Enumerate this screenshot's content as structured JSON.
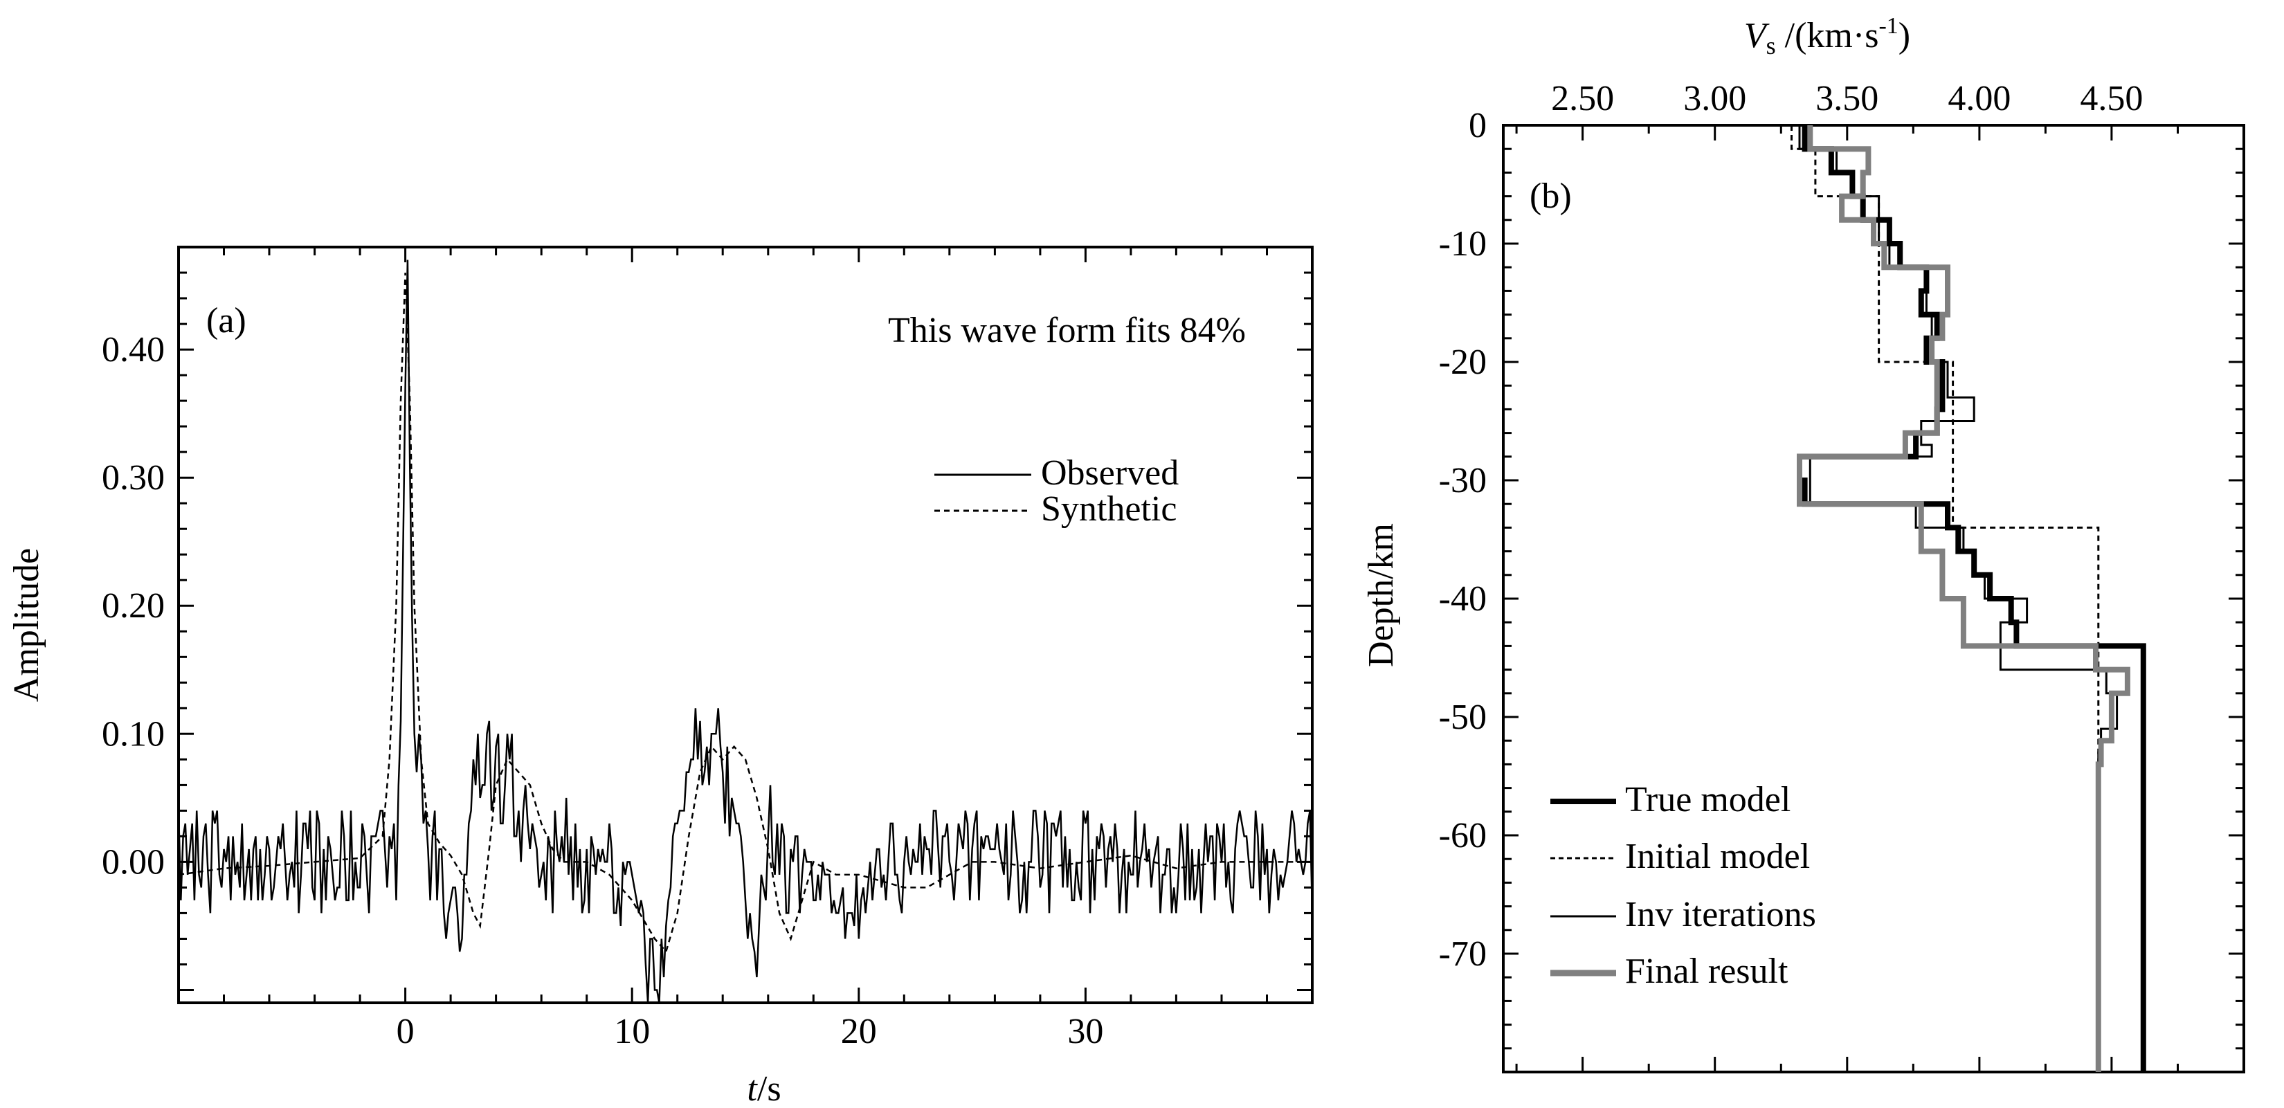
{
  "chart_data": [
    {
      "panel": "(a)",
      "type": "line",
      "xlabel_var": "t",
      "xlabel_unit": "/s",
      "ylabel": "Amplitude",
      "xlim": [
        -10,
        40
      ],
      "ylim": [
        -0.11,
        0.48
      ],
      "xticks": [
        0,
        10,
        20,
        30
      ],
      "xtick_labels": [
        "0",
        "10",
        "20",
        "30"
      ],
      "yticks": [
        0.0,
        0.1,
        0.2,
        0.3,
        0.4
      ],
      "ytick_labels": [
        "0.00",
        "0.10",
        "0.20",
        "0.30",
        "0.40"
      ],
      "annotation": "This wave form fits 84%",
      "legend": [
        "Observed",
        "Synthetic"
      ],
      "legend_position": "right",
      "series": [
        {
          "name": "Synthetic",
          "style": "dashed",
          "x": [
            -10,
            -8,
            -6,
            -4,
            -2,
            -1,
            -0.7,
            -0.4,
            -0.2,
            0,
            0.2,
            0.4,
            0.7,
            1,
            1.5,
            2,
            2.5,
            3,
            3.3,
            3.7,
            4,
            4.5,
            5,
            5.5,
            6,
            6.5,
            7,
            8,
            9,
            10,
            11,
            11.5,
            12,
            12.5,
            13,
            13.5,
            14,
            14.5,
            15,
            15.5,
            16,
            16.5,
            17,
            17.5,
            18,
            19,
            20,
            22,
            23,
            24,
            25,
            26,
            28,
            30,
            32,
            34,
            36,
            38,
            40
          ],
          "values": [
            -0.01,
            -0.005,
            -0.003,
            0.0,
            0.003,
            0.02,
            0.08,
            0.2,
            0.36,
            0.46,
            0.36,
            0.2,
            0.08,
            0.03,
            0.015,
            0.005,
            -0.01,
            -0.04,
            -0.05,
            0.01,
            0.06,
            0.08,
            0.07,
            0.06,
            0.03,
            0.01,
            0.0,
            0.0,
            -0.01,
            -0.03,
            -0.06,
            -0.07,
            -0.04,
            0.02,
            0.07,
            0.09,
            0.08,
            0.09,
            0.08,
            0.05,
            0.01,
            -0.04,
            -0.06,
            -0.03,
            0.0,
            -0.01,
            -0.01,
            -0.02,
            -0.02,
            -0.01,
            0.0,
            0.0,
            -0.005,
            0.0,
            0.005,
            -0.005,
            0.0,
            0.0,
            0.0
          ]
        },
        {
          "name": "Observed",
          "style": "solid",
          "dx": 0.1,
          "x_start": -10,
          "values": [
            0.04,
            -0.03,
            0.02,
            0.03,
            -0.01,
            0.01,
            0.03,
            -0.03,
            0.04,
            -0.01,
            -0.02,
            0.02,
            0.03,
            -0.01,
            -0.04,
            0.04,
            0.03,
            0.04,
            -0.01,
            -0.02,
            0.01,
            0.0,
            0.02,
            -0.03,
            0.02,
            -0.01,
            0.0,
            -0.02,
            0.03,
            -0.03,
            -0.01,
            0.01,
            -0.03,
            0.01,
            0.02,
            -0.03,
            0.01,
            -0.03,
            -0.01,
            0.02,
            0.01,
            -0.03,
            -0.02,
            0.0,
            0.02,
            0.01,
            0.03,
            0.0,
            -0.03,
            -0.01,
            0.0,
            -0.02,
            0.04,
            -0.04,
            -0.01,
            0.03,
            0.03,
            0.01,
            0.04,
            -0.02,
            -0.03,
            0.04,
            0.03,
            -0.04,
            0.01,
            -0.03,
            0.02,
            0.01,
            -0.01,
            -0.03,
            -0.02,
            -0.02,
            0.04,
            0.02,
            -0.03,
            -0.03,
            0.04,
            -0.03,
            0.0,
            -0.02,
            -0.02,
            0.03,
            0.02,
            -0.01,
            -0.04,
            0.02,
            0.02,
            0.02,
            0.03,
            0.04,
            0.04,
            0.01,
            -0.02,
            0.02,
            0.01,
            0.03,
            -0.03,
            0.06,
            0.11,
            0.24,
            0.37,
            0.47,
            0.31,
            0.19,
            0.1,
            0.07,
            0.1,
            0.08,
            0.03,
            0.04,
            0.01,
            -0.03,
            0.02,
            0.04,
            -0.03,
            0.01,
            0.01,
            -0.04,
            -0.06,
            -0.04,
            -0.03,
            -0.02,
            -0.02,
            -0.04,
            -0.07,
            -0.06,
            -0.01,
            -0.01,
            0.03,
            0.04,
            0.08,
            0.06,
            0.1,
            0.05,
            0.06,
            0.06,
            0.1,
            0.11,
            0.04,
            0.05,
            0.09,
            0.1,
            0.03,
            0.03,
            0.06,
            0.1,
            0.08,
            0.1,
            0.02,
            0.02,
            0.04,
            0.0,
            0.04,
            0.06,
            0.03,
            0.01,
            0.03,
            0.02,
            0.01,
            -0.02,
            -0.01,
            0.0,
            -0.03,
            0.02,
            0.01,
            -0.04,
            0.04,
            0.01,
            0.0,
            0.02,
            0.0,
            0.05,
            -0.01,
            0.02,
            -0.03,
            0.03,
            -0.02,
            0.01,
            -0.04,
            -0.03,
            0.01,
            -0.04,
            0.02,
            0.01,
            -0.01,
            0.01,
            0.0,
            0.01,
            0.0,
            0.0,
            0.03,
            0.01,
            -0.04,
            -0.04,
            -0.02,
            -0.05,
            0.0,
            -0.01,
            0.0,
            0.0,
            -0.01,
            -0.02,
            -0.03,
            -0.04,
            -0.03,
            -0.04,
            -0.08,
            -0.11,
            -0.06,
            -0.06,
            -0.1,
            -0.1,
            -0.11,
            -0.06,
            -0.09,
            -0.05,
            -0.03,
            -0.02,
            0.02,
            0.03,
            0.03,
            0.04,
            0.04,
            0.04,
            0.07,
            0.07,
            0.08,
            0.08,
            0.12,
            0.08,
            0.11,
            0.06,
            0.07,
            0.09,
            0.06,
            0.1,
            0.1,
            0.1,
            0.12,
            0.09,
            0.07,
            0.03,
            0.09,
            0.02,
            0.05,
            0.04,
            0.03,
            0.03,
            0.02,
            0.0,
            -0.03,
            -0.06,
            -0.04,
            -0.06,
            -0.07,
            -0.09,
            -0.05,
            -0.01,
            -0.02,
            -0.03,
            0.02,
            0.06,
            0.0,
            -0.01,
            0.03,
            -0.01,
            0.03,
            0.02,
            -0.04,
            -0.04,
            0.01,
            0.0,
            0.02,
            0.02,
            -0.04,
            -0.01,
            0.01,
            0.0,
            0.0,
            0.0,
            -0.03,
            -0.03,
            -0.01,
            -0.03,
            0.0,
            -0.01,
            -0.01,
            -0.01,
            -0.04,
            -0.03,
            -0.04,
            -0.04,
            -0.03,
            -0.02,
            -0.06,
            -0.04,
            -0.04,
            -0.04,
            -0.05,
            -0.01,
            -0.06,
            -0.03,
            -0.02,
            -0.04,
            -0.02,
            0.0,
            -0.03,
            -0.01,
            0.01,
            0.01,
            -0.02,
            -0.01,
            -0.03,
            0.0,
            0.03,
            0.03,
            -0.01,
            -0.01,
            -0.03,
            -0.04,
            0.0,
            0.02,
            0.0,
            -0.01,
            0.01,
            0.0,
            0.0,
            0.03,
            -0.01,
            0.02,
            0.01,
            0.01,
            -0.01,
            0.04,
            0.04,
            0.01,
            -0.02,
            0.02,
            0.02,
            0.03,
            0.0,
            -0.01,
            -0.03,
            0.0,
            0.03,
            0.02,
            0.01,
            0.04,
            0.03,
            -0.03,
            0.01,
            0.03,
            0.04,
            -0.03,
            0.02,
            0.01,
            0.02,
            0.02,
            0.01,
            0.01,
            0.01,
            0.03,
            0.01,
            0.0,
            -0.01,
            0.03,
            -0.03,
            -0.01,
            0.04,
            0.02,
            0.0,
            -0.04,
            -0.03,
            0.0,
            -0.04,
            0.0,
            0.0,
            0.04,
            0.04,
            0.02,
            -0.02,
            -0.01,
            0.04,
            0.03,
            -0.04,
            0.03,
            0.03,
            0.02,
            0.03,
            0.04,
            -0.02,
            0.02,
            -0.02,
            0.01,
            -0.03,
            -0.03,
            0.0,
            -0.02,
            -0.03,
            0.04,
            0.03,
            0.04,
            -0.04,
            0.01,
            -0.03,
            0.02,
            0.01,
            0.03,
            0.02,
            -0.02,
            0.01,
            0.02,
            0.0,
            0.03,
            0.01,
            -0.04,
            -0.01,
            0.01,
            -0.04,
            0.0,
            -0.01,
            -0.01,
            0.04,
            -0.02,
            0.0,
            0.01,
            0.03,
            0.0,
            0.01,
            -0.02,
            0.0,
            0.01,
            0.02,
            -0.04,
            -0.01,
            -0.01,
            0.01,
            0.01,
            -0.04,
            -0.02,
            -0.04,
            -0.01,
            0.03,
            0.01,
            -0.03,
            0.03,
            -0.03,
            0.01,
            -0.03,
            -0.02,
            0.01,
            -0.04,
            0.0,
            0.03,
            0.0,
            0.02,
            0.02,
            -0.03,
            0.03,
            0.02,
            0.0,
            0.03,
            -0.02,
            0.0,
            -0.03,
            -0.04,
            0.01,
            0.03,
            0.04,
            0.03,
            0.02,
            0.02,
            0.0,
            -0.02,
            -0.02,
            0.04,
            0.02,
            -0.03,
            0.03,
            -0.01,
            0.01,
            -0.04,
            -0.01,
            0.01,
            0.0,
            -0.03,
            -0.01,
            -0.02,
            -0.01,
            0.0,
            0.02,
            0.04,
            0.03,
            0.0,
            0.01,
            0.0,
            -0.01,
            0.0,
            0.03,
            0.04,
            -0.04
          ]
        }
      ]
    },
    {
      "panel": "(b)",
      "type": "line",
      "xlabel_var": "V",
      "xlabel_sub": "s",
      "xlabel_unit": " /(km·s",
      "xlabel_exp": "-1",
      "xlabel_close": ")",
      "ylabel": "Depth/km",
      "xlim": [
        2.2,
        5.0
      ],
      "ylim": [
        -80,
        0
      ],
      "xticks": [
        2.5,
        3.0,
        3.5,
        4.0,
        4.5
      ],
      "xtick_labels": [
        "2.50",
        "3.00",
        "3.50",
        "4.00",
        "4.50"
      ],
      "yticks": [
        0,
        -10,
        -20,
        -30,
        -40,
        -50,
        -60,
        -70
      ],
      "ytick_labels": [
        "0",
        "-10",
        "-20",
        "-30",
        "-40",
        "-50",
        "-60",
        "-70"
      ],
      "legend": [
        "True model",
        "Initial model",
        "Inv iterations",
        "Final result"
      ],
      "legend_position": "bottom-left",
      "series": [
        {
          "name": "Initial model",
          "style": "dashed",
          "depth": [
            0,
            2,
            2,
            6,
            6,
            20,
            20,
            34,
            34,
            80
          ],
          "vs": [
            3.29,
            3.29,
            3.38,
            3.38,
            3.62,
            3.62,
            3.9,
            3.9,
            4.45,
            4.45
          ]
        },
        {
          "name": "Inv iterations",
          "style": "thin",
          "depth": [
            0,
            2,
            2,
            4,
            4,
            6,
            6,
            10,
            10,
            12,
            12,
            16,
            16,
            20,
            20,
            23,
            23,
            25,
            25,
            27,
            27,
            28,
            28,
            32,
            32,
            34,
            34,
            36,
            36,
            38,
            38,
            40,
            40,
            42,
            42,
            46,
            46,
            48,
            48,
            51,
            51,
            53,
            53,
            80
          ],
          "vs": [
            3.32,
            3.32,
            3.46,
            3.46,
            3.52,
            3.52,
            3.62,
            3.62,
            3.66,
            3.66,
            3.8,
            3.8,
            3.82,
            3.82,
            3.88,
            3.88,
            3.98,
            3.98,
            3.78,
            3.78,
            3.82,
            3.82,
            3.36,
            3.36,
            3.76,
            3.76,
            3.94,
            3.94,
            3.98,
            3.98,
            4.02,
            4.02,
            4.18,
            4.18,
            4.08,
            4.08,
            4.48,
            4.48,
            4.52,
            4.52,
            4.46,
            4.46,
            4.45,
            4.45
          ]
        },
        {
          "name": "True model",
          "style": "thick-black",
          "depth": [
            0,
            2,
            2,
            4,
            4,
            6,
            6,
            8,
            8,
            10,
            10,
            12,
            12,
            14,
            14,
            16,
            16,
            18,
            18,
            20,
            20,
            22,
            22,
            24,
            24,
            26,
            26,
            28,
            28,
            30,
            30,
            32,
            32,
            34,
            34,
            36,
            36,
            38,
            38,
            40,
            40,
            42,
            42,
            44,
            44,
            80
          ],
          "vs": [
            3.34,
            3.34,
            3.44,
            3.44,
            3.52,
            3.52,
            3.56,
            3.56,
            3.66,
            3.66,
            3.7,
            3.7,
            3.8,
            3.8,
            3.78,
            3.78,
            3.84,
            3.84,
            3.8,
            3.8,
            3.86,
            3.86,
            3.86,
            3.86,
            3.84,
            3.84,
            3.76,
            3.76,
            3.32,
            3.32,
            3.34,
            3.34,
            3.88,
            3.88,
            3.92,
            3.92,
            3.98,
            3.98,
            4.04,
            4.04,
            4.12,
            4.12,
            4.14,
            4.14,
            4.62,
            4.62
          ]
        },
        {
          "name": "Final result",
          "style": "thick-gray",
          "depth": [
            0,
            2,
            2,
            4,
            4,
            6,
            6,
            8,
            8,
            10,
            10,
            12,
            12,
            16,
            16,
            18,
            18,
            20,
            20,
            24,
            24,
            26,
            26,
            28,
            28,
            32,
            32,
            36,
            36,
            40,
            40,
            44,
            44,
            46,
            46,
            48,
            48,
            52,
            52,
            54,
            54,
            80
          ],
          "vs": [
            3.36,
            3.36,
            3.58,
            3.58,
            3.56,
            3.56,
            3.48,
            3.48,
            3.6,
            3.6,
            3.64,
            3.64,
            3.88,
            3.88,
            3.86,
            3.86,
            3.82,
            3.82,
            3.84,
            3.84,
            3.84,
            3.84,
            3.72,
            3.72,
            3.32,
            3.32,
            3.78,
            3.78,
            3.86,
            3.86,
            3.94,
            3.94,
            4.44,
            4.44,
            4.56,
            4.56,
            4.5,
            4.5,
            4.46,
            4.46,
            4.45,
            4.45
          ]
        }
      ]
    }
  ],
  "panel_a": {
    "label": "(a)",
    "annotation": "This wave form fits 84%",
    "legend_observed": "Observed",
    "legend_synthetic": "Synthetic",
    "ylabel": "Amplitude",
    "xlabel_var": "t",
    "xlabel_unit": "/s"
  },
  "panel_b": {
    "label": "(b)",
    "ylabel": "Depth/km",
    "xlabel_var": "V",
    "xlabel_sub": "s",
    "xlabel_unit": " /(km·s",
    "xlabel_exp": "-1",
    "xlabel_close": ")",
    "legend_true": "True model",
    "legend_initial": "Initial model",
    "legend_inv": "Inv iterations",
    "legend_final": "Final result"
  },
  "colors": {
    "ink": "#000000",
    "final": "#808080"
  }
}
